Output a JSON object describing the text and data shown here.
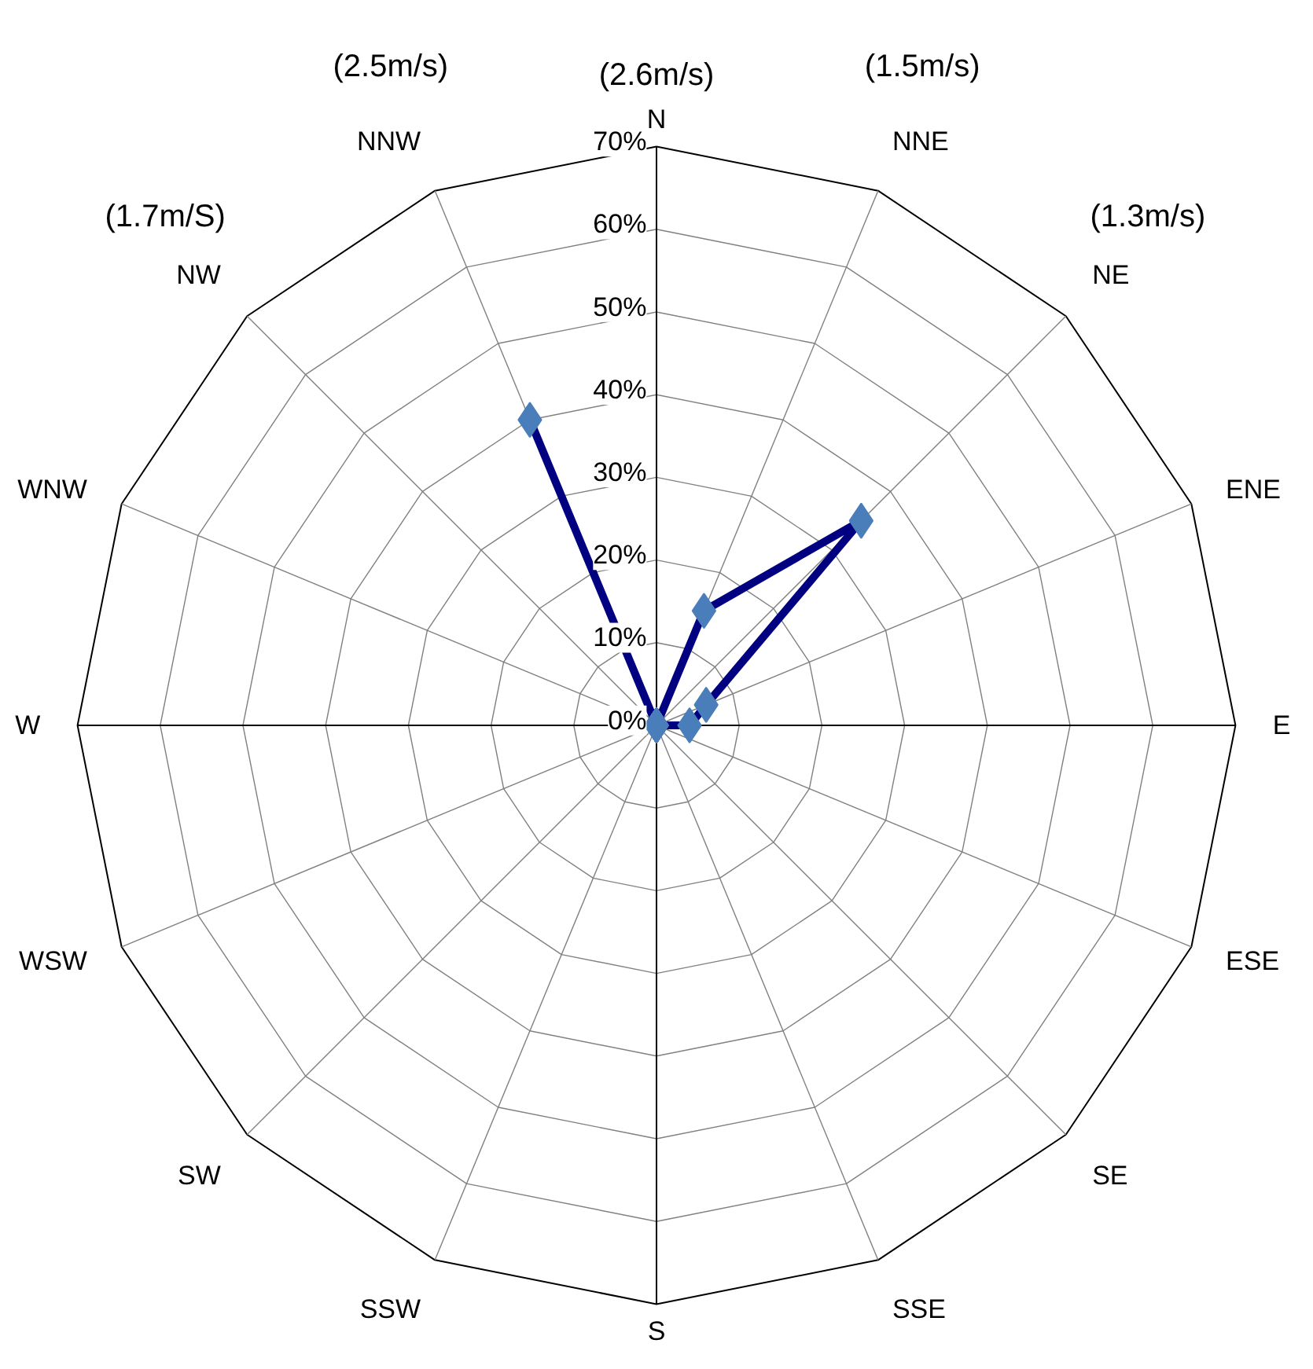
{
  "chart_data": {
    "type": "radar",
    "categories": [
      "N",
      "NNE",
      "NE",
      "ENE",
      "E",
      "ESE",
      "SE",
      "SSE",
      "S",
      "SSW",
      "SW",
      "WSW",
      "W",
      "WNW",
      "NW",
      "NNW"
    ],
    "series": [
      {
        "color": "#000080",
        "values": [
          0,
          15,
          35,
          6.5,
          4,
          0,
          0,
          0,
          0,
          0,
          0,
          0,
          0,
          0,
          0,
          40
        ]
      }
    ],
    "ylim": [
      0,
      70
    ],
    "yticks": [
      {
        "value": 0,
        "label": "0%"
      },
      {
        "value": 10,
        "label": "10%"
      },
      {
        "value": 20,
        "label": "20%"
      },
      {
        "value": 30,
        "label": "30%"
      },
      {
        "value": 40,
        "label": "40%"
      },
      {
        "value": 50,
        "label": "50%"
      },
      {
        "value": 60,
        "label": "60%"
      },
      {
        "value": 70,
        "label": "70%"
      }
    ],
    "grid": true,
    "marker": "diamond",
    "line_style": "solid",
    "annotations": [
      {
        "text": "(2.6m/s)",
        "x": "N"
      },
      {
        "text": "(1.5m/s)",
        "x": "NNE"
      },
      {
        "text": "(1.3m/s)",
        "x": "NE"
      },
      {
        "text": "(2.5m/s)",
        "x": "NNW"
      },
      {
        "text": "(1.7m/S)",
        "x": "NW"
      }
    ]
  }
}
